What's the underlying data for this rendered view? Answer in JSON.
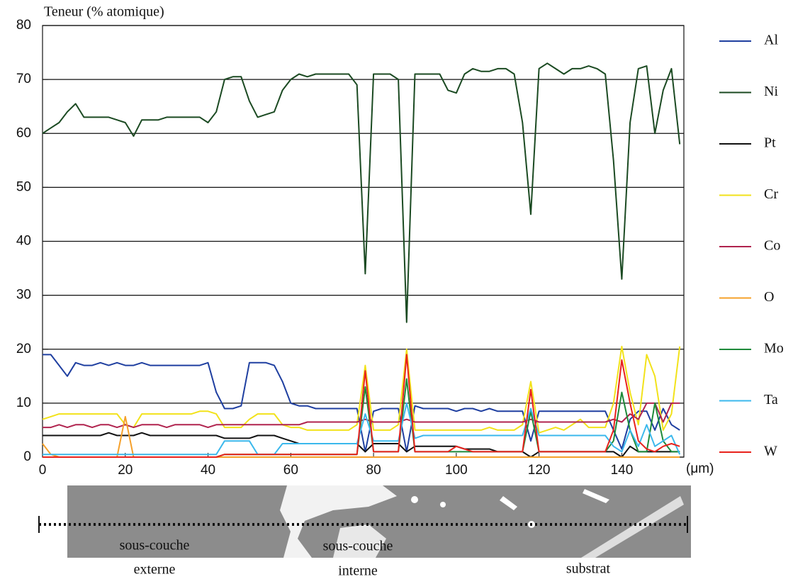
{
  "chart_data": {
    "type": "line",
    "y_label": "Teneur (% atomique)",
    "x_unit": "(μm)",
    "x": [
      0,
      2,
      4,
      6,
      8,
      10,
      12,
      14,
      16,
      18,
      20,
      22,
      24,
      26,
      28,
      30,
      32,
      34,
      36,
      38,
      40,
      42,
      44,
      46,
      48,
      50,
      52,
      54,
      56,
      58,
      60,
      62,
      64,
      66,
      68,
      70,
      72,
      74,
      76,
      78,
      80,
      82,
      84,
      86,
      88,
      90,
      92,
      94,
      96,
      98,
      100,
      102,
      104,
      106,
      108,
      110,
      112,
      114,
      116,
      118,
      120,
      122,
      124,
      126,
      128,
      130,
      132,
      134,
      136,
      138,
      140,
      142,
      144,
      146,
      148,
      150,
      152,
      154
    ],
    "xlim": [
      0,
      155
    ],
    "ylim": [
      0,
      80
    ],
    "xticks": [
      0,
      20,
      40,
      60,
      80,
      100,
      120,
      140
    ],
    "yticks": [
      0,
      10,
      20,
      30,
      40,
      50,
      60,
      70,
      80
    ],
    "grid": true,
    "legend": "right",
    "series": [
      {
        "name": "Al",
        "color": "#1f3fa0",
        "values": [
          19,
          19,
          17,
          15,
          17.5,
          17,
          17,
          17.5,
          17,
          17.5,
          17,
          17,
          17.5,
          17,
          17,
          17,
          17,
          17,
          17,
          17,
          17.5,
          12,
          9,
          9,
          9.5,
          17.5,
          17.5,
          17.5,
          17,
          14,
          10,
          9.5,
          9.5,
          9,
          9,
          9,
          9,
          9,
          9,
          1,
          8.5,
          9,
          9,
          9,
          1,
          9.5,
          9,
          9,
          9,
          9,
          8.5,
          9,
          9,
          8.5,
          9,
          8.5,
          8.5,
          8.5,
          8.5,
          3,
          8.5,
          8.5,
          8.5,
          8.5,
          8.5,
          8.5,
          8.5,
          8.5,
          8.5,
          5,
          1.5,
          7,
          8.5,
          8.5,
          5,
          9,
          6,
          5
        ]
      },
      {
        "name": "Ni",
        "color": "#1b4a22",
        "values": [
          60,
          61,
          62,
          64,
          65.5,
          63,
          63,
          63,
          63,
          62.5,
          62,
          59.5,
          62.5,
          62.5,
          62.5,
          63,
          63,
          63,
          63,
          63,
          62,
          64,
          70,
          70.5,
          70.5,
          66,
          63,
          63.5,
          64,
          68,
          70,
          71,
          70.5,
          71,
          71,
          71,
          71,
          71,
          69,
          34,
          71,
          71,
          71,
          70,
          25,
          71,
          71,
          71,
          71,
          68,
          67.5,
          71,
          72,
          71.5,
          71.5,
          72,
          72,
          71,
          62,
          45,
          72,
          73,
          72,
          71,
          72,
          72,
          72.5,
          72,
          71,
          55,
          33,
          62,
          72,
          72.5,
          60,
          68,
          72,
          58
        ]
      },
      {
        "name": "Pt",
        "color": "#111111",
        "values": [
          4,
          4,
          4,
          4,
          4,
          4,
          4,
          4,
          4.5,
          4,
          4,
          4,
          4.5,
          4,
          4,
          4,
          4,
          4,
          4,
          4,
          4,
          4,
          3.5,
          3.5,
          3.5,
          3.5,
          4,
          4,
          4,
          3.5,
          3,
          2.5,
          2.5,
          2.5,
          2.5,
          2.5,
          2.5,
          2.5,
          2.5,
          1,
          2.5,
          2.5,
          2.5,
          2.5,
          1,
          2,
          2,
          2,
          2,
          2,
          2,
          1.5,
          1.5,
          1.5,
          1.5,
          1,
          1,
          1,
          1,
          0,
          1,
          1,
          1,
          1,
          1,
          1,
          1,
          1,
          1,
          1,
          0,
          2,
          1,
          1,
          1,
          1,
          1,
          1
        ]
      },
      {
        "name": "Cr",
        "color": "#f2e21a",
        "values": [
          7,
          7.5,
          8,
          8,
          8,
          8,
          8,
          8,
          8,
          8,
          6,
          5.5,
          8,
          8,
          8,
          8,
          8,
          8,
          8,
          8.5,
          8.5,
          8,
          5.5,
          5.5,
          5.5,
          7,
          8,
          8,
          8,
          6,
          5.5,
          5.5,
          5,
          5,
          5,
          5,
          5,
          5,
          6,
          17,
          5,
          5,
          5,
          6,
          20,
          5,
          5,
          5,
          5,
          5,
          5,
          5,
          5,
          5,
          5.5,
          5,
          5,
          5,
          6,
          14,
          4.5,
          5,
          5.5,
          5,
          6,
          7,
          5.5,
          5.5,
          5.5,
          10,
          20.5,
          12,
          6,
          19,
          15,
          5,
          8,
          20.5
        ]
      },
      {
        "name": "Co",
        "color": "#b0234e",
        "values": [
          5.5,
          5.5,
          6,
          5.5,
          6,
          6,
          5.5,
          6,
          6,
          5.5,
          6,
          5.5,
          6,
          6,
          6,
          5.5,
          6,
          6,
          6,
          6,
          5.5,
          6,
          6,
          6,
          6,
          6,
          6,
          6,
          6,
          6,
          6,
          6,
          6.5,
          6.5,
          6.5,
          6.5,
          6.5,
          6.5,
          6.5,
          7,
          6.5,
          6.5,
          6.5,
          6.5,
          7,
          6.5,
          6.5,
          6.5,
          6.5,
          6.5,
          6.5,
          6.5,
          6.5,
          6.5,
          6.5,
          6.5,
          6.5,
          6.5,
          6.5,
          7,
          6.5,
          6.5,
          6.5,
          6.5,
          6.5,
          6.5,
          6.5,
          6.5,
          6.5,
          7,
          6.5,
          8,
          7,
          10,
          10,
          6.5,
          10,
          10
        ]
      },
      {
        "name": "O",
        "color": "#f5a02a",
        "values": [
          2.5,
          0.5,
          0,
          0,
          0,
          0,
          0,
          0,
          0,
          0,
          7.5,
          0,
          0,
          0,
          0,
          0,
          0,
          0,
          0,
          0,
          0,
          0,
          0,
          0,
          0,
          0,
          0,
          0,
          0,
          0,
          0,
          0,
          0,
          0,
          0,
          0,
          0,
          0,
          0,
          0,
          0,
          0,
          0,
          0,
          0,
          0,
          0,
          0,
          0,
          0,
          0,
          0,
          0,
          0,
          0,
          0,
          0,
          0,
          0,
          0,
          0,
          0,
          0,
          0,
          0,
          0,
          0,
          0,
          0,
          0,
          0,
          0,
          0,
          0,
          0,
          0,
          0,
          0
        ]
      },
      {
        "name": "Mo",
        "color": "#1e8a3a",
        "values": [
          0,
          0,
          0,
          0,
          0,
          0,
          0,
          0,
          0,
          0,
          0,
          0,
          0,
          0,
          0,
          0,
          0,
          0,
          0,
          0,
          0,
          0,
          0.5,
          0.5,
          0.5,
          0.5,
          0.5,
          0.5,
          0.5,
          0.5,
          0.5,
          0.5,
          0.5,
          0.5,
          0.5,
          0.5,
          0.5,
          0.5,
          0.5,
          13,
          1,
          1,
          1,
          1,
          14.5,
          1,
          1,
          1,
          1,
          1,
          1,
          1,
          1,
          1,
          1,
          1,
          1,
          1,
          1,
          8.5,
          1,
          1,
          1,
          1,
          1,
          1,
          1,
          1,
          1,
          3,
          12,
          5,
          1,
          1,
          10,
          3,
          1,
          1
        ]
      },
      {
        "name": "Ta",
        "color": "#3bb8ec",
        "values": [
          0.5,
          0.5,
          0.5,
          0.5,
          0.5,
          0.5,
          0.5,
          0.5,
          0.5,
          0.5,
          0.5,
          0.5,
          0.5,
          0.5,
          0.5,
          0.5,
          0.5,
          0.5,
          0.5,
          0.5,
          0.5,
          0.5,
          3,
          3,
          3,
          3,
          0.5,
          0.5,
          0.5,
          2.5,
          2.5,
          2.5,
          2.5,
          2.5,
          2.5,
          2.5,
          2.5,
          2.5,
          2.5,
          8,
          3,
          3,
          3,
          3,
          10,
          3.5,
          4,
          4,
          4,
          4,
          4,
          4,
          4,
          4,
          4,
          4,
          4,
          4,
          4,
          9,
          4,
          4,
          4,
          4,
          4,
          4,
          4,
          4,
          4,
          2,
          1,
          5,
          2,
          6,
          2,
          3,
          4,
          0.5
        ]
      },
      {
        "name": "W",
        "color": "#e8221c",
        "values": [
          0,
          0,
          0,
          0,
          0,
          0,
          0,
          0,
          0,
          0,
          0,
          0,
          0,
          0,
          0,
          0,
          0,
          0,
          0,
          0,
          0,
          0,
          0.5,
          0.5,
          0.5,
          0.5,
          0.5,
          0.5,
          0.5,
          0.5,
          0.5,
          0.5,
          0.5,
          0.5,
          0.5,
          0.5,
          0.5,
          0.5,
          0.5,
          16,
          1,
          1,
          1,
          1,
          19,
          1,
          1,
          1,
          1,
          1,
          2,
          1.5,
          1,
          1,
          1,
          1,
          1,
          1,
          1,
          12.5,
          1,
          1,
          1,
          1,
          1,
          1,
          1,
          1,
          1,
          5,
          18,
          10,
          3,
          1.5,
          1,
          2,
          2.5,
          2
        ]
      }
    ],
    "image_labels": [
      "sous-couche",
      "externe",
      "sous-couche",
      "interne",
      "substrat"
    ]
  }
}
